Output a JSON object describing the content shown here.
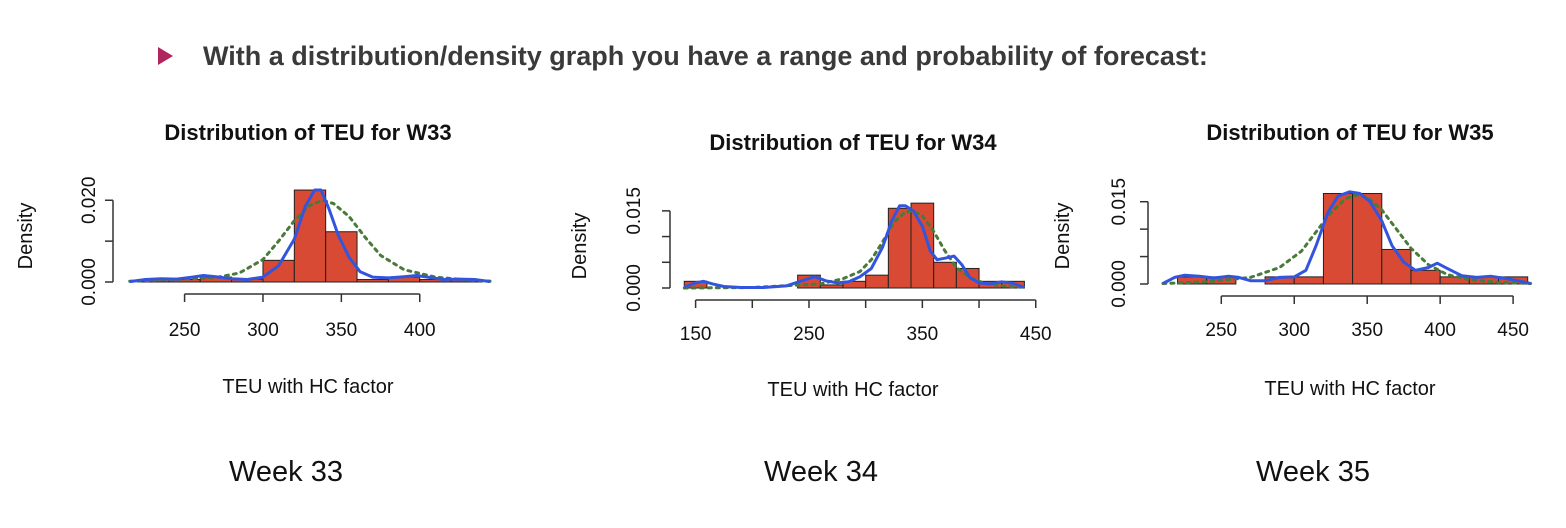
{
  "header": {
    "text": "With a distribution/density graph you have a range and probability of forecast:",
    "bullet_color": "#b0245f"
  },
  "colors": {
    "bar_fill": "#d94a34",
    "bar_stroke": "#222222",
    "kde_line": "#3355dd",
    "normal_line": "#4a7a3a"
  },
  "chart_data": [
    {
      "type": "bar",
      "title": "Distribution of TEU for W33",
      "xlabel": "TEU with HC factor",
      "ylabel": "Density",
      "xlim": [
        212,
        448
      ],
      "ylim": [
        0,
        0.023
      ],
      "x_ticks": [
        250,
        300,
        350,
        400
      ],
      "x_tick_labels": [
        "250",
        "300",
        "350",
        "400"
      ],
      "y_ticks": [
        0,
        0.01,
        0.02
      ],
      "y_tick_labels": [
        "0.000",
        "",
        "0.020"
      ],
      "bin_edges": [
        220,
        240,
        260,
        280,
        300,
        320,
        340,
        360,
        380,
        400,
        420,
        440
      ],
      "bar_values": [
        0.0006,
        0.0006,
        0.0012,
        0.0007,
        0.0053,
        0.0225,
        0.0123,
        0.0006,
        0.0012,
        0.0006,
        0.0006
      ],
      "kde": {
        "x": [
          215,
          225,
          235,
          245,
          255,
          262,
          270,
          280,
          290,
          300,
          310,
          320,
          327,
          333,
          337,
          342,
          348,
          355,
          362,
          370,
          380,
          390,
          398,
          405,
          415,
          425,
          435,
          445
        ],
        "y": [
          0.0001,
          0.0006,
          0.0008,
          0.0007,
          0.0012,
          0.0016,
          0.0013,
          0.0008,
          0.0006,
          0.0012,
          0.004,
          0.0105,
          0.0185,
          0.0225,
          0.0225,
          0.018,
          0.0115,
          0.006,
          0.0025,
          0.0012,
          0.001,
          0.0013,
          0.0016,
          0.0012,
          0.0006,
          0.0007,
          0.0006,
          0.0001
        ]
      },
      "normal": {
        "x": [
          215,
          230,
          250,
          270,
          285,
          300,
          310,
          320,
          330,
          338,
          345,
          355,
          365,
          375,
          390,
          410,
          430,
          445
        ],
        "y": [
          0.0002,
          0.0004,
          0.0007,
          0.0011,
          0.0022,
          0.0055,
          0.01,
          0.015,
          0.0188,
          0.02,
          0.0192,
          0.016,
          0.011,
          0.0065,
          0.003,
          0.0012,
          0.0005,
          0.0002
        ]
      },
      "caption": "Week 33"
    },
    {
      "type": "bar",
      "title": "Distribution of TEU for W34",
      "xlabel": "TEU with HC factor",
      "ylabel": "Density",
      "xlim": [
        138,
        452
      ],
      "ylim": [
        0,
        0.0175
      ],
      "x_ticks": [
        150,
        200,
        250,
        300,
        350,
        400,
        450
      ],
      "x_tick_labels": [
        "150",
        "",
        "250",
        "",
        "350",
        "",
        "450"
      ],
      "y_ticks": [
        0,
        0.005,
        0.01,
        0.015
      ],
      "y_tick_labels": [
        "0.000",
        "",
        "",
        "0.015"
      ],
      "bin_edges": [
        140,
        160,
        180,
        200,
        220,
        240,
        260,
        280,
        300,
        320,
        340,
        360,
        380,
        400,
        420,
        440
      ],
      "bar_values": [
        0.0013,
        0,
        0,
        0,
        0,
        0.0025,
        0.0006,
        0.0013,
        0.0025,
        0.0155,
        0.0165,
        0.005,
        0.0038,
        0.0013,
        0.0013
      ],
      "kde": {
        "x": [
          140,
          150,
          157,
          165,
          175,
          190,
          210,
          230,
          245,
          255,
          265,
          275,
          285,
          295,
          305,
          315,
          323,
          330,
          335,
          342,
          350,
          357,
          363,
          370,
          378,
          385,
          392,
          400,
          410,
          420,
          430,
          440
        ],
        "y": [
          0.0002,
          0.001,
          0.0013,
          0.0008,
          0.0003,
          0.0001,
          0.0001,
          0.0004,
          0.0015,
          0.0022,
          0.0014,
          0.001,
          0.0012,
          0.0022,
          0.0038,
          0.008,
          0.013,
          0.016,
          0.016,
          0.015,
          0.012,
          0.0072,
          0.0055,
          0.0058,
          0.0062,
          0.0045,
          0.002,
          0.001,
          0.0008,
          0.0012,
          0.0009,
          0.0001
        ]
      },
      "normal": {
        "x": [
          140,
          200,
          260,
          280,
          295,
          305,
          315,
          325,
          335,
          342,
          350,
          360,
          370,
          380,
          392,
          405,
          420,
          440
        ],
        "y": [
          0.0,
          0.0001,
          0.0008,
          0.0018,
          0.0032,
          0.0055,
          0.009,
          0.0128,
          0.0148,
          0.015,
          0.014,
          0.011,
          0.0072,
          0.004,
          0.002,
          0.0009,
          0.0004,
          0.0001
        ]
      },
      "caption": "Week 34"
    },
    {
      "type": "bar",
      "title": "Distribution of TEU for W35",
      "xlabel": "TEU with HC factor",
      "ylabel": "Density",
      "xlim": [
        208,
        465
      ],
      "ylim": [
        0,
        0.0175
      ],
      "x_ticks": [
        250,
        300,
        350,
        400,
        450
      ],
      "x_tick_labels": [
        "250",
        "300",
        "350",
        "400",
        "450"
      ],
      "y_ticks": [
        0,
        0.005,
        0.01,
        0.015
      ],
      "y_tick_labels": [
        "0.000",
        "",
        "",
        "0.015"
      ],
      "bin_edges": [
        220,
        240,
        260,
        280,
        300,
        320,
        340,
        360,
        380,
        400,
        420,
        440,
        460
      ],
      "bar_values": [
        0.0013,
        0.0013,
        0,
        0.0013,
        0.0013,
        0.0165,
        0.0165,
        0.0063,
        0.0025,
        0.0013,
        0.0013,
        0.0013
      ],
      "kde": {
        "x": [
          210,
          218,
          225,
          235,
          245,
          255,
          262,
          270,
          280,
          290,
          300,
          308,
          315,
          323,
          330,
          338,
          345,
          352,
          360,
          367,
          375,
          383,
          392,
          398,
          405,
          415,
          425,
          435,
          445,
          455,
          462
        ],
        "y": [
          0.0001,
          0.0012,
          0.0016,
          0.0014,
          0.0011,
          0.0014,
          0.0012,
          0.0006,
          0.0006,
          0.0012,
          0.0013,
          0.0025,
          0.007,
          0.013,
          0.016,
          0.0168,
          0.0165,
          0.015,
          0.0115,
          0.007,
          0.004,
          0.0025,
          0.003,
          0.0038,
          0.0028,
          0.0015,
          0.0012,
          0.0014,
          0.001,
          0.0005,
          0.0001
        ]
      },
      "normal": {
        "x": [
          210,
          240,
          270,
          290,
          305,
          315,
          325,
          335,
          342,
          350,
          360,
          370,
          380,
          392,
          405,
          420,
          440,
          462
        ],
        "y": [
          0.0001,
          0.0004,
          0.0012,
          0.003,
          0.006,
          0.0095,
          0.013,
          0.0155,
          0.0162,
          0.0158,
          0.0135,
          0.01,
          0.0065,
          0.0035,
          0.0017,
          0.0008,
          0.0003,
          0.0001
        ]
      },
      "caption": "Week 35"
    }
  ]
}
